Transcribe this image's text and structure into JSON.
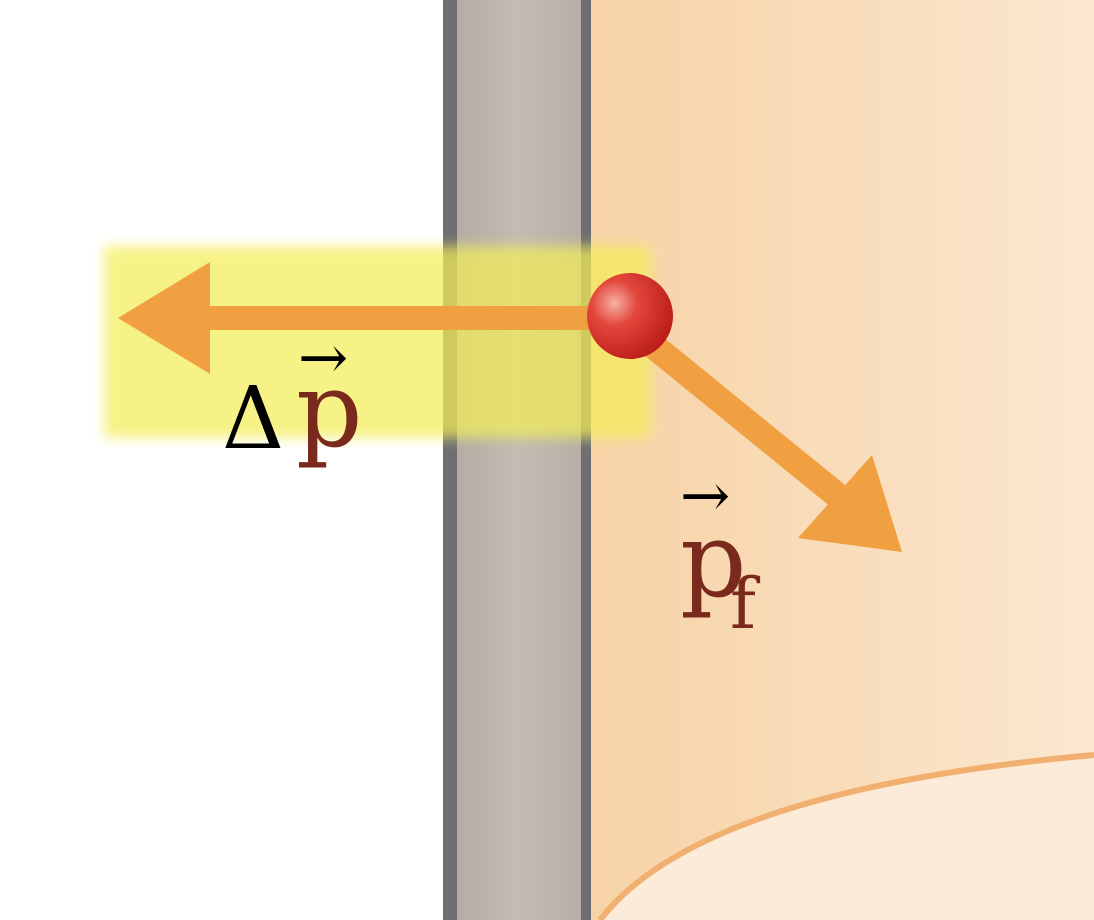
{
  "labels": {
    "delta_p": {
      "delta": "Δ",
      "symbol": "p",
      "arrow": "→"
    },
    "p_final": {
      "symbol": "p",
      "subscript": "f",
      "arrow": "→"
    }
  },
  "colors": {
    "background": "#ffffff",
    "region_fill": "#f8d8b0",
    "region_fill_light": "#fbe8d2",
    "wall_fill": "#bab4aa",
    "wall_edge": "#6f6f73",
    "highlight": "#f4f05a",
    "arrow": "#f0a040",
    "ball": "#d62a24",
    "ball_highlight": "#f6a69a",
    "label_dark": "#000000",
    "label_vector": "#7a2a1c",
    "curve": "#f1b070"
  }
}
